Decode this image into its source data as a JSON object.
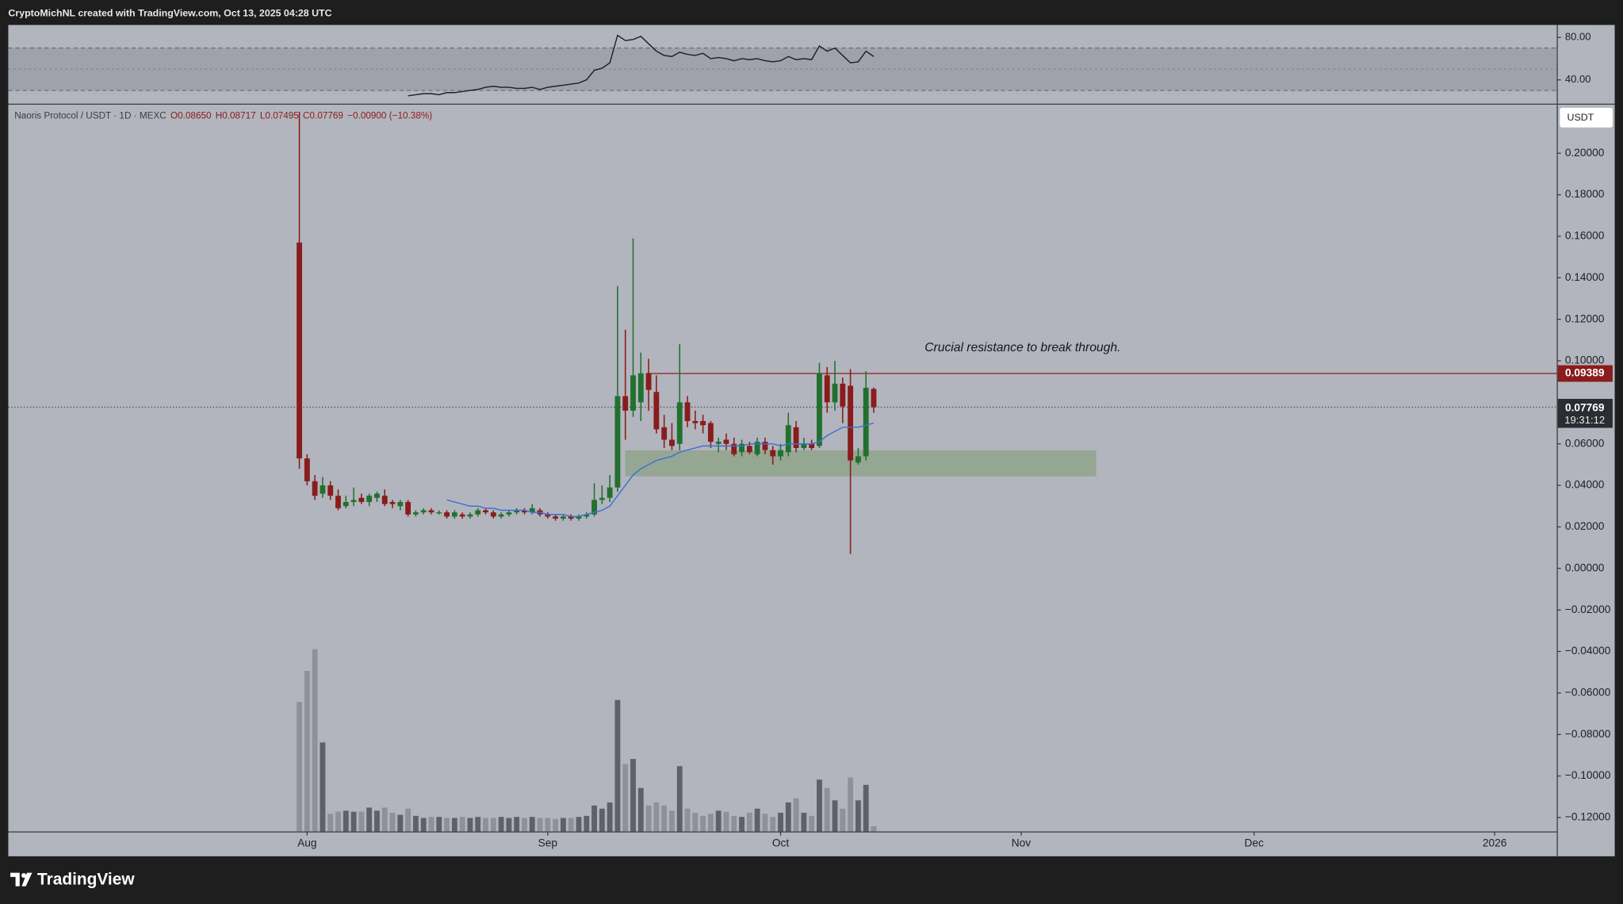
{
  "header": {
    "attribution": "CryptoMichNL created with TradingView.com, Oct 13, 2025 04:28 UTC"
  },
  "footer": {
    "brand": "TradingView"
  },
  "chart_data": [
    {
      "type": "line",
      "categories": [
        null,
        null,
        null,
        null,
        null,
        null,
        null,
        null,
        null,
        null,
        null,
        null,
        null,
        null,
        null,
        null,
        null,
        null,
        null,
        null,
        null,
        null,
        null,
        null,
        null,
        null,
        null,
        null,
        null,
        null,
        null,
        null,
        null,
        null,
        null,
        null,
        null,
        null,
        null,
        null,
        null,
        null,
        null,
        null,
        null,
        null,
        null,
        null,
        null,
        null,
        null,
        null,
        null,
        null,
        null,
        null,
        null,
        null,
        null,
        null,
        null,
        null,
        null,
        null,
        null,
        null,
        null,
        null,
        null,
        null,
        null,
        null,
        null,
        null,
        null
      ],
      "values": [
        null,
        null,
        null,
        null,
        null,
        null,
        null,
        null,
        null,
        null,
        null,
        null,
        null,
        null,
        25,
        26,
        27,
        27,
        26,
        28,
        28,
        29,
        30,
        31,
        33,
        34,
        33,
        33,
        32,
        32,
        33,
        31,
        33,
        34,
        35,
        36,
        37,
        40,
        49,
        51,
        56,
        82,
        77,
        78,
        81,
        74,
        67,
        63,
        62,
        66,
        64,
        63,
        65,
        60,
        61,
        60,
        58,
        60,
        59,
        60,
        58,
        57,
        58,
        62,
        59,
        60,
        59,
        72,
        67,
        70,
        63,
        56,
        57,
        67,
        62
      ],
      "color": "#1e1f24",
      "xlim": [
        -37.5,
        162
      ],
      "ylim": [
        17.6,
        91.7
      ],
      "yticks": [
        {
          "value": 80,
          "label": "80.00"
        },
        {
          "value": 40,
          "label": "40.00"
        }
      ],
      "bands": [
        30,
        70
      ],
      "mid": 50
    },
    {
      "type": "candlestick",
      "legend": [
        "Naoris Protocol / USDT · 1D · MEXC",
        "O0.08650",
        "H0.08717",
        "L0.07495",
        "C0.07769",
        "−0.00900 (−10.38%)"
      ],
      "currency": "USDT",
      "countdown": "19:31:12",
      "annotation": "Crucial resistance to break through.",
      "categories": [
        null,
        null,
        null,
        null,
        null,
        null,
        null,
        null,
        null,
        null,
        null,
        null,
        null,
        null,
        null,
        null,
        null,
        null,
        null,
        null,
        null,
        null,
        null,
        null,
        null,
        null,
        null,
        null,
        null,
        null,
        null,
        null,
        null,
        null,
        null,
        null,
        null,
        null,
        null,
        null,
        null,
        null,
        null,
        null,
        null,
        null,
        null,
        null,
        null,
        null,
        null,
        null,
        null,
        null,
        null,
        null,
        null,
        null,
        null,
        null,
        null,
        null,
        null,
        null,
        null,
        null,
        null,
        null,
        null,
        null,
        null,
        null,
        null,
        null,
        null
      ],
      "open": [
        0.157,
        0.053,
        0.042,
        0.036,
        0.04,
        0.035,
        0.03,
        0.032,
        0.034,
        0.032,
        0.034,
        0.035,
        0.032,
        0.03,
        0.032,
        0.026,
        0.027,
        0.028,
        0.027,
        0.027,
        0.025,
        0.026,
        0.025,
        0.026,
        0.028,
        0.027,
        0.025,
        0.026,
        0.027,
        0.028,
        0.027,
        0.028,
        0.026,
        0.025,
        0.024,
        0.025,
        0.024,
        0.025,
        0.026,
        0.033,
        0.034,
        0.039,
        0.083,
        0.076,
        0.08,
        0.094,
        0.085,
        0.068,
        0.062,
        0.06,
        0.08,
        0.071,
        0.071,
        0.07,
        0.06,
        0.062,
        0.06,
        0.056,
        0.059,
        0.055,
        0.061,
        0.057,
        0.054,
        0.056,
        0.068,
        0.058,
        0.06,
        0.059,
        0.093,
        0.08,
        0.089,
        0.088,
        0.051,
        0.054,
        0.0865
      ],
      "high": [
        0.22,
        0.055,
        0.045,
        0.044,
        0.042,
        0.038,
        0.035,
        0.039,
        0.036,
        0.036,
        0.037,
        0.038,
        0.033,
        0.033,
        0.033,
        0.028,
        0.029,
        0.029,
        0.028,
        0.028,
        0.028,
        0.027,
        0.027,
        0.029,
        0.029,
        0.028,
        0.027,
        0.028,
        0.029,
        0.029,
        0.031,
        0.029,
        0.027,
        0.026,
        0.026,
        0.026,
        0.026,
        0.027,
        0.041,
        0.04,
        0.045,
        0.136,
        0.115,
        0.159,
        0.104,
        0.101,
        0.093,
        0.074,
        0.07,
        0.108,
        0.083,
        0.076,
        0.074,
        0.071,
        0.063,
        0.065,
        0.063,
        0.062,
        0.061,
        0.063,
        0.063,
        0.059,
        0.06,
        0.075,
        0.071,
        0.063,
        0.062,
        0.099,
        0.097,
        0.1,
        0.092,
        0.096,
        0.058,
        0.095,
        0.08717
      ],
      "low": [
        0.048,
        0.04,
        0.033,
        0.034,
        0.033,
        0.028,
        0.029,
        0.03,
        0.031,
        0.03,
        0.032,
        0.03,
        0.029,
        0.028,
        0.025,
        0.025,
        0.026,
        0.026,
        0.026,
        0.024,
        0.024,
        0.024,
        0.024,
        0.025,
        0.026,
        0.024,
        0.024,
        0.025,
        0.026,
        0.026,
        0.026,
        0.025,
        0.024,
        0.023,
        0.023,
        0.023,
        0.023,
        0.024,
        0.025,
        0.031,
        0.032,
        0.037,
        0.062,
        0.073,
        0.071,
        0.076,
        0.065,
        0.058,
        0.057,
        0.057,
        0.068,
        0.067,
        0.065,
        0.058,
        0.056,
        0.057,
        0.054,
        0.054,
        0.055,
        0.054,
        0.055,
        0.05,
        0.052,
        0.054,
        0.056,
        0.057,
        0.057,
        0.058,
        0.075,
        0.076,
        0.07,
        0.007,
        0.05,
        0.052,
        0.07495
      ],
      "close": [
        0.053,
        0.042,
        0.035,
        0.04,
        0.035,
        0.029,
        0.032,
        0.033,
        0.032,
        0.035,
        0.036,
        0.031,
        0.031,
        0.032,
        0.026,
        0.027,
        0.028,
        0.027,
        0.027,
        0.025,
        0.027,
        0.025,
        0.026,
        0.028,
        0.027,
        0.025,
        0.026,
        0.027,
        0.028,
        0.027,
        0.029,
        0.026,
        0.025,
        0.024,
        0.025,
        0.024,
        0.025,
        0.026,
        0.033,
        0.034,
        0.039,
        0.083,
        0.076,
        0.093,
        0.094,
        0.086,
        0.067,
        0.062,
        0.059,
        0.08,
        0.071,
        0.07,
        0.069,
        0.061,
        0.061,
        0.06,
        0.055,
        0.06,
        0.056,
        0.061,
        0.057,
        0.054,
        0.057,
        0.069,
        0.058,
        0.06,
        0.058,
        0.094,
        0.08,
        0.089,
        0.078,
        0.052,
        0.054,
        0.087,
        0.07769
      ],
      "volume": [
        125,
        155,
        176,
        86,
        17,
        19,
        20,
        19,
        19,
        23,
        20,
        23,
        18,
        16,
        22,
        15,
        13,
        14,
        14,
        13,
        13,
        14,
        13,
        14,
        13,
        13,
        14,
        13,
        14,
        13,
        14,
        13,
        13,
        12,
        13,
        13,
        14,
        15,
        25,
        22,
        28,
        127,
        65,
        70,
        42,
        25,
        28,
        25,
        20,
        63,
        22,
        18,
        15,
        17,
        20,
        19,
        15,
        14,
        18,
        22,
        17,
        14,
        18,
        28,
        32,
        18,
        15,
        50,
        42,
        30,
        22,
        52,
        30,
        45,
        5
      ],
      "ma": {
        "color": "#3f6fd8",
        "values": [
          null,
          null,
          null,
          null,
          null,
          null,
          null,
          null,
          null,
          null,
          null,
          null,
          null,
          null,
          null,
          null,
          null,
          null,
          null,
          0.033,
          0.032,
          0.031,
          0.03,
          0.03,
          0.029,
          0.029,
          0.028,
          0.028,
          0.028,
          0.028,
          0.027,
          0.027,
          0.026,
          0.026,
          0.026,
          0.025,
          0.025,
          0.026,
          0.027,
          0.028,
          0.03,
          0.035,
          0.04,
          0.045,
          0.048,
          0.05,
          0.052,
          0.053,
          0.054,
          0.056,
          0.057,
          0.058,
          0.059,
          0.059,
          0.059,
          0.059,
          0.059,
          0.059,
          0.06,
          0.06,
          0.06,
          0.06,
          0.059,
          0.06,
          0.06,
          0.06,
          0.06,
          0.061,
          0.064,
          0.066,
          0.068,
          0.068,
          0.068,
          0.069,
          0.07
        ]
      },
      "up_color": "#22702f",
      "down_color": "#8a1c1c",
      "volume_up_color": "#5f6168",
      "volume_down_color": "#8f9199",
      "resistance": 0.09389,
      "resistance_color": "#8a1c1c",
      "zone": [
        0.0444,
        0.0569
      ],
      "zone_color": "#8fa38c",
      "xlim": [
        -37.5,
        162
      ],
      "xticks": [
        {
          "value": 1,
          "label": "Aug"
        },
        {
          "value": 32,
          "label": "Sep"
        },
        {
          "value": 62,
          "label": "Oct"
        },
        {
          "value": 93,
          "label": "Nov"
        },
        {
          "value": 123,
          "label": "Dec"
        },
        {
          "value": 154,
          "label": "2026"
        }
      ],
      "ylim": [
        -0.1267,
        0.2234
      ],
      "yticks": [
        {
          "value": 0.2,
          "label": "0.20000"
        },
        {
          "value": 0.18,
          "label": "0.18000"
        },
        {
          "value": 0.16,
          "label": "0.16000"
        },
        {
          "value": 0.14,
          "label": "0.14000"
        },
        {
          "value": 0.12,
          "label": "0.12000"
        },
        {
          "value": 0.1,
          "label": "0.10000"
        },
        {
          "value": 0.06,
          "label": "0.06000"
        },
        {
          "value": 0.04,
          "label": "0.04000"
        },
        {
          "value": 0.02,
          "label": "0.02000"
        },
        {
          "value": 0,
          "label": "0.00000"
        },
        {
          "value": -0.02,
          "label": "−0.02000"
        },
        {
          "value": -0.04,
          "label": "−0.04000"
        },
        {
          "value": -0.06,
          "label": "−0.06000"
        },
        {
          "value": -0.08,
          "label": "−0.08000"
        },
        {
          "value": -0.1,
          "label": "−0.10000"
        },
        {
          "value": -0.12,
          "label": "−0.12000"
        }
      ],
      "grid": false
    }
  ]
}
